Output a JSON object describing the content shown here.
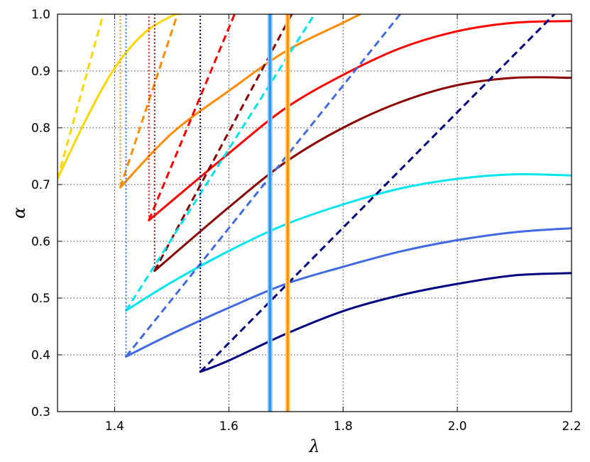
{
  "chart_data": {
    "type": "line",
    "title": "",
    "xlabel": "λ",
    "ylabel": "α",
    "xlim": [
      1.3,
      2.2
    ],
    "ylim": [
      0.3,
      1.0
    ],
    "grid": true,
    "xticks": [
      1.4,
      1.6,
      1.8,
      2.0,
      2.2
    ],
    "yticks": [
      0.3,
      0.4,
      0.5,
      0.6,
      0.7,
      0.8,
      0.9,
      1.0
    ],
    "xtick_labels": [
      "1.4",
      "1.6",
      "1.8",
      "2.0",
      "2.2"
    ],
    "ytick_labels": [
      "0.3",
      "0.4",
      "0.5",
      "0.6",
      "0.7",
      "0.8",
      "0.9",
      "1.0"
    ],
    "vertical_lines": [
      {
        "x": 1.672,
        "color": "#1e90ff",
        "edge": "#87cefa"
      },
      {
        "x": 1.703,
        "color": "#ff8c00",
        "edge": "#ffd27f"
      }
    ],
    "series": [
      {
        "color": "#ffd700",
        "solid": [
          [
            1.3,
            0.71
          ],
          [
            1.35,
            0.815
          ],
          [
            1.4,
            0.905
          ],
          [
            1.45,
            0.965
          ],
          [
            1.5,
            0.997
          ],
          [
            1.515,
            1.0
          ]
        ],
        "dashed": [
          [
            1.3,
            0.71
          ],
          [
            1.38,
            1.0
          ]
        ],
        "dotted": [
          [
            1.3,
            0.71
          ],
          [
            1.3,
            1.0
          ]
        ]
      },
      {
        "color": "#ff8c00",
        "solid": [
          [
            1.41,
            0.695
          ],
          [
            1.5,
            0.79
          ],
          [
            1.6,
            0.865
          ],
          [
            1.7,
            0.935
          ],
          [
            1.8,
            0.985
          ],
          [
            1.83,
            1.0
          ]
        ],
        "dashed": [
          [
            1.41,
            0.695
          ],
          [
            1.51,
            1.0
          ]
        ],
        "dotted": [
          [
            1.41,
            0.695
          ],
          [
            1.41,
            1.0
          ]
        ]
      },
      {
        "color": "#ff0000",
        "solid": [
          [
            1.46,
            0.637
          ],
          [
            1.6,
            0.755
          ],
          [
            1.7,
            0.835
          ],
          [
            1.8,
            0.893
          ],
          [
            1.9,
            0.94
          ],
          [
            2.0,
            0.97
          ],
          [
            2.1,
            0.985
          ],
          [
            2.2,
            0.988
          ]
        ],
        "dashed": [
          [
            1.46,
            0.637
          ],
          [
            1.61,
            1.0
          ]
        ],
        "dotted": [
          [
            1.46,
            0.637
          ],
          [
            1.46,
            1.0
          ]
        ]
      },
      {
        "color": "#8b0000",
        "solid": [
          [
            1.47,
            0.548
          ],
          [
            1.6,
            0.66
          ],
          [
            1.7,
            0.74
          ],
          [
            1.8,
            0.8
          ],
          [
            1.9,
            0.845
          ],
          [
            2.0,
            0.875
          ],
          [
            2.1,
            0.888
          ],
          [
            2.2,
            0.888
          ]
        ],
        "dashed": [
          [
            1.47,
            0.548
          ],
          [
            1.71,
            1.0
          ]
        ],
        "dotted": [
          [
            1.47,
            0.548
          ],
          [
            1.47,
            1.0
          ]
        ]
      },
      {
        "color": "#00e5ee",
        "solid": [
          [
            1.42,
            0.478
          ],
          [
            1.5,
            0.528
          ],
          [
            1.6,
            0.583
          ],
          [
            1.7,
            0.63
          ],
          [
            1.8,
            0.665
          ],
          [
            1.9,
            0.693
          ],
          [
            2.0,
            0.71
          ],
          [
            2.1,
            0.718
          ],
          [
            2.2,
            0.716
          ]
        ],
        "dashed": [
          [
            1.42,
            0.478
          ],
          [
            1.75,
            1.0
          ]
        ],
        "dotted": [
          [
            1.42,
            0.478
          ],
          [
            1.42,
            1.0
          ]
        ]
      },
      {
        "color": "#4169e1",
        "solid": [
          [
            1.42,
            0.397
          ],
          [
            1.5,
            0.437
          ],
          [
            1.6,
            0.483
          ],
          [
            1.7,
            0.525
          ],
          [
            1.8,
            0.555
          ],
          [
            1.9,
            0.582
          ],
          [
            2.0,
            0.602
          ],
          [
            2.1,
            0.616
          ],
          [
            2.2,
            0.623
          ]
        ],
        "dashed": [
          [
            1.42,
            0.397
          ],
          [
            1.9,
            1.0
          ]
        ],
        "dotted": [
          [
            1.42,
            0.397
          ],
          [
            1.42,
            1.0
          ]
        ]
      },
      {
        "color": "#000080",
        "solid": [
          [
            1.55,
            0.37
          ],
          [
            1.6,
            0.39
          ],
          [
            1.7,
            0.437
          ],
          [
            1.8,
            0.477
          ],
          [
            1.9,
            0.505
          ],
          [
            2.0,
            0.525
          ],
          [
            2.1,
            0.54
          ],
          [
            2.2,
            0.544
          ]
        ],
        "dashed": [
          [
            1.55,
            0.37
          ],
          [
            2.17,
            1.0
          ]
        ],
        "dotted": [
          [
            1.55,
            0.37
          ],
          [
            1.55,
            1.0
          ]
        ]
      }
    ]
  }
}
